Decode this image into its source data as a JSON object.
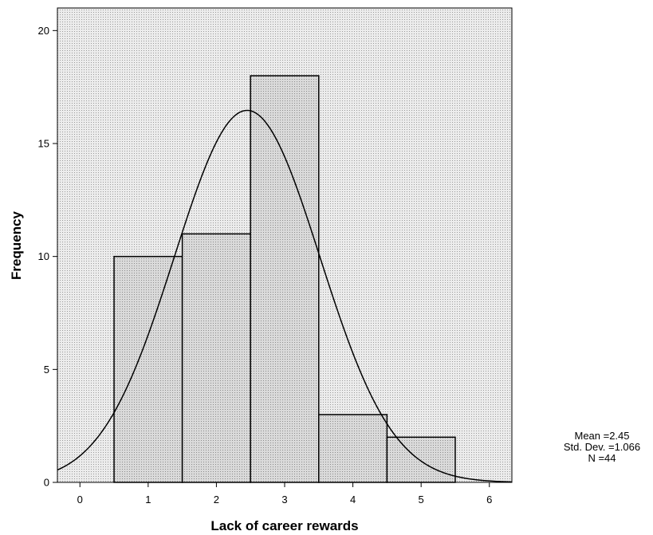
{
  "chart_data": {
    "type": "bar",
    "subtype": "histogram",
    "xlabel": "Lack of career rewards",
    "ylabel": "Frequency",
    "x_ticks": [
      0,
      1,
      2,
      3,
      4,
      5,
      6
    ],
    "y_ticks": [
      0,
      5,
      10,
      15,
      20
    ],
    "xlim": [
      -0.33,
      6.33
    ],
    "ylim": [
      0,
      21
    ],
    "bins": [
      {
        "center": 1,
        "value": 10
      },
      {
        "center": 2,
        "value": 11
      },
      {
        "center": 3,
        "value": 18
      },
      {
        "center": 4,
        "value": 3
      },
      {
        "center": 5,
        "value": 2
      }
    ],
    "bin_width": 1,
    "normal_curve": {
      "mean": 2.45,
      "std": 1.066,
      "n": 44
    },
    "colors": {
      "bar_fill": "#d4d4d4",
      "plot_background": "#e6e6e6",
      "stroke": "#000000"
    },
    "grid": false
  },
  "stats": {
    "mean_label": "Mean =2.45",
    "std_label": "Std. Dev. =1.066",
    "n_label": "N =44"
  }
}
